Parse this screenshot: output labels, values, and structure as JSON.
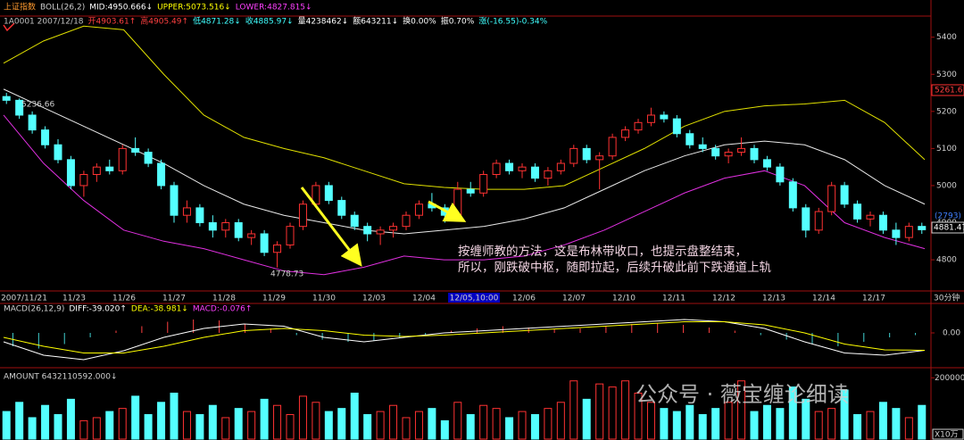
{
  "chart_data": {
    "type": "candlestick",
    "header": {
      "row1": [
        {
          "text": "上证指数",
          "color": "#ff9a2e"
        },
        {
          "text": "BOLL(26,2)",
          "color": "#d0d0d0"
        },
        {
          "text": "MID:4950.666↓",
          "color": "#ffffff"
        },
        {
          "text": "UPPER:5073.516↓",
          "color": "#ffff00"
        },
        {
          "text": "LOWER:4827.815↓",
          "color": "#ff40ff"
        }
      ],
      "row2": [
        {
          "text": "1A0001 2007/12/18",
          "color": "#c0c0c0"
        },
        {
          "text": "开4903.61↑",
          "color": "#ff4040"
        },
        {
          "text": "高4905.49↑",
          "color": "#ff4040"
        },
        {
          "text": "低4871.28↓",
          "color": "#40ffff"
        },
        {
          "text": "收4885.97↓",
          "color": "#40ffff"
        },
        {
          "text": "量4238462↓",
          "color": "#ffffff"
        },
        {
          "text": "额643211↓",
          "color": "#ffffff"
        },
        {
          "text": "换0.00%",
          "color": "#ffffff"
        },
        {
          "text": "振0.70%",
          "color": "#ffffff"
        },
        {
          "text": "涨(-16.55)-0.34%",
          "color": "#40ffff"
        }
      ]
    },
    "price": {
      "ylim": [
        4716,
        5457
      ],
      "yticks": [
        4800,
        4900,
        5000,
        5100,
        5200,
        5300,
        5400
      ],
      "up_color": "#ff3232",
      "down_color": "#54ffff",
      "candles": [
        [
          5240,
          5250,
          5220,
          5230
        ],
        [
          5230,
          5235,
          5180,
          5190
        ],
        [
          5190,
          5200,
          5140,
          5150
        ],
        [
          5150,
          5160,
          5100,
          5110
        ],
        [
          5110,
          5125,
          5060,
          5070
        ],
        [
          5070,
          5080,
          4990,
          5000
        ],
        [
          5000,
          5040,
          4970,
          5030
        ],
        [
          5030,
          5060,
          5010,
          5050
        ],
        [
          5050,
          5070,
          5030,
          5040
        ],
        [
          5040,
          5110,
          5030,
          5100
        ],
        [
          5100,
          5130,
          5080,
          5090
        ],
        [
          5090,
          5100,
          5050,
          5060
        ],
        [
          5060,
          5070,
          4990,
          5000
        ],
        [
          5000,
          5010,
          4900,
          4920
        ],
        [
          4920,
          4960,
          4900,
          4940
        ],
        [
          4940,
          4950,
          4890,
          4900
        ],
        [
          4900,
          4920,
          4860,
          4880
        ],
        [
          4880,
          4910,
          4860,
          4900
        ],
        [
          4900,
          4910,
          4850,
          4860
        ],
        [
          4860,
          4880,
          4840,
          4870
        ],
        [
          4870,
          4880,
          4810,
          4820
        ],
        [
          4820,
          4850,
          4779,
          4840
        ],
        [
          4840,
          4900,
          4830,
          4890
        ],
        [
          4890,
          4960,
          4880,
          4950
        ],
        [
          4950,
          5010,
          4940,
          5000
        ],
        [
          5000,
          5010,
          4950,
          4960
        ],
        [
          4960,
          4970,
          4910,
          4920
        ],
        [
          4920,
          4930,
          4880,
          4890
        ],
        [
          4890,
          4900,
          4850,
          4870
        ],
        [
          4870,
          4890,
          4840,
          4880
        ],
        [
          4880,
          4900,
          4860,
          4890
        ],
        [
          4890,
          4930,
          4880,
          4920
        ],
        [
          4920,
          4960,
          4910,
          4950
        ],
        [
          4950,
          4980,
          4930,
          4940
        ],
        [
          4940,
          4950,
          4900,
          4920
        ],
        [
          4920,
          5010,
          4915,
          4990
        ],
        [
          4990,
          5010,
          4970,
          4980
        ],
        [
          4980,
          5040,
          4970,
          5030
        ],
        [
          5030,
          5070,
          5020,
          5060
        ],
        [
          5060,
          5070,
          5030,
          5040
        ],
        [
          5040,
          5060,
          5020,
          5050
        ],
        [
          5050,
          5060,
          5010,
          5020
        ],
        [
          5020,
          5050,
          5000,
          5040
        ],
        [
          5040,
          5070,
          5030,
          5060
        ],
        [
          5060,
          5110,
          5050,
          5100
        ],
        [
          5100,
          5110,
          5060,
          5070
        ],
        [
          5070,
          5090,
          4990,
          5080
        ],
        [
          5080,
          5140,
          5070,
          5130
        ],
        [
          5130,
          5160,
          5120,
          5150
        ],
        [
          5150,
          5180,
          5140,
          5170
        ],
        [
          5170,
          5210,
          5160,
          5190
        ],
        [
          5190,
          5200,
          5170,
          5180
        ],
        [
          5180,
          5190,
          5130,
          5140
        ],
        [
          5140,
          5150,
          5100,
          5110
        ],
        [
          5110,
          5130,
          5090,
          5100
        ],
        [
          5100,
          5110,
          5070,
          5080
        ],
        [
          5080,
          5100,
          5060,
          5090
        ],
        [
          5090,
          5130,
          5080,
          5100
        ],
        [
          5100,
          5110,
          5060,
          5070
        ],
        [
          5070,
          5080,
          5040,
          5050
        ],
        [
          5050,
          5060,
          5000,
          5010
        ],
        [
          5010,
          5020,
          4930,
          4940
        ],
        [
          4940,
          4950,
          4860,
          4880
        ],
        [
          4880,
          4940,
          4870,
          4930
        ],
        [
          4930,
          5010,
          4920,
          5000
        ],
        [
          5000,
          5010,
          4940,
          4950
        ],
        [
          4950,
          4960,
          4900,
          4910
        ],
        [
          4910,
          4930,
          4890,
          4920
        ],
        [
          4920,
          4930,
          4870,
          4880
        ],
        [
          4880,
          4900,
          4840,
          4860
        ],
        [
          4860,
          4900,
          4850,
          4890
        ],
        [
          4890,
          4900,
          4870,
          4881
        ]
      ],
      "boll": [
        {
          "name": "UPPER",
          "color": "#e0e000",
          "values": [
            5330,
            5390,
            5430,
            5420,
            5300,
            5190,
            5130,
            5100,
            5075,
            5040,
            5005,
            4995,
            4990,
            4990,
            5000,
            5050,
            5100,
            5160,
            5200,
            5215,
            5220,
            5230,
            5170,
            5070
          ]
        },
        {
          "name": "MID",
          "color": "#e8e8e8",
          "values": [
            5260,
            5210,
            5160,
            5110,
            5060,
            5000,
            4950,
            4920,
            4900,
            4880,
            4870,
            4880,
            4890,
            4910,
            4940,
            4990,
            5040,
            5080,
            5110,
            5120,
            5110,
            5070,
            5000,
            4950
          ]
        },
        {
          "name": "LOWER",
          "color": "#e030e0",
          "values": [
            5190,
            5060,
            4960,
            4880,
            4850,
            4830,
            4800,
            4770,
            4760,
            4780,
            4810,
            4800,
            4800,
            4810,
            4840,
            4880,
            4930,
            4980,
            5020,
            5040,
            5000,
            4900,
            4860,
            4830
          ]
        }
      ],
      "annotations": [
        "5236.66",
        "4778.73"
      ],
      "right_labels": [
        "5261.6",
        "(2793)",
        "4881.47"
      ],
      "note": [
        "按缠师教的方法，这是布林带收口，也提示盘整结束，",
        "所以，刚跌破中枢，随即拉起，后续升破此前下跌通道上轨"
      ]
    },
    "x_labels": [
      "2007/11/21",
      "11/23",
      "11/26",
      "11/27",
      "11/28",
      "11/29",
      "11/30",
      "12/03",
      "12/04",
      "12/05,10:00",
      "12/06",
      "12/07",
      "12/10",
      "12/11",
      "12/12",
      "12/13",
      "12/14",
      "12/17"
    ],
    "period": "30分钟",
    "macd": {
      "labels": [
        {
          "text": "MACD(26,12,9)",
          "color": "#d0d0d0"
        },
        {
          "text": "DIFF:-39.020↑",
          "color": "#ffffff"
        },
        {
          "text": "DEA:-38.981↓",
          "color": "#ffff00"
        },
        {
          "text": "MACD:-0.076↑",
          "color": "#ff40ff"
        }
      ],
      "ylim": [
        -60,
        60
      ],
      "yticks": [
        {
          "value": 0,
          "label": "0.00"
        }
      ],
      "hist": [
        -30,
        -35,
        -25,
        -10,
        5,
        15,
        25,
        30,
        28,
        20,
        10,
        -5,
        -15,
        -20,
        -18,
        -10,
        -5,
        5,
        10,
        15,
        12,
        8,
        10,
        15,
        20,
        22,
        18,
        12,
        5,
        -5,
        -15,
        -25,
        -30,
        -20,
        -10,
        -5
      ],
      "diff": [
        -20,
        -50,
        -60,
        -40,
        -10,
        10,
        20,
        15,
        -10,
        -20,
        -10,
        0,
        5,
        10,
        15,
        20,
        25,
        30,
        25,
        10,
        -20,
        -45,
        -50,
        -39
      ],
      "dea": [
        -10,
        -30,
        -45,
        -45,
        -30,
        -10,
        5,
        10,
        5,
        -5,
        -8,
        -5,
        0,
        5,
        10,
        15,
        20,
        25,
        25,
        18,
        0,
        -25,
        -38,
        -39
      ]
    },
    "volume": {
      "label": "AMOUNT 6432110592.000↓",
      "ylim": [
        0,
        230000
      ],
      "yticks": [
        200000
      ],
      "unit": "X10万",
      "values": [
        90000,
        120000,
        70000,
        110000,
        80000,
        130000,
        60000,
        70000,
        90000,
        100000,
        140000,
        80000,
        120000,
        150000,
        90000,
        80000,
        110000,
        70000,
        100000,
        90000,
        130000,
        110000,
        80000,
        140000,
        120000,
        90000,
        100000,
        150000,
        80000,
        90000,
        110000,
        70000,
        90000,
        100000,
        60000,
        120000,
        80000,
        110000,
        100000,
        70000,
        90000,
        80000,
        100000,
        120000,
        190000,
        130000,
        180000,
        170000,
        190000,
        150000,
        120000,
        100000,
        90000,
        110000,
        80000,
        100000,
        120000,
        190000,
        90000,
        110000,
        100000,
        170000,
        130000,
        90000,
        100000,
        160000,
        80000,
        90000,
        120000,
        100000,
        70000,
        110000
      ]
    },
    "watermark": "公众号 · 薇宝缠论细读"
  }
}
